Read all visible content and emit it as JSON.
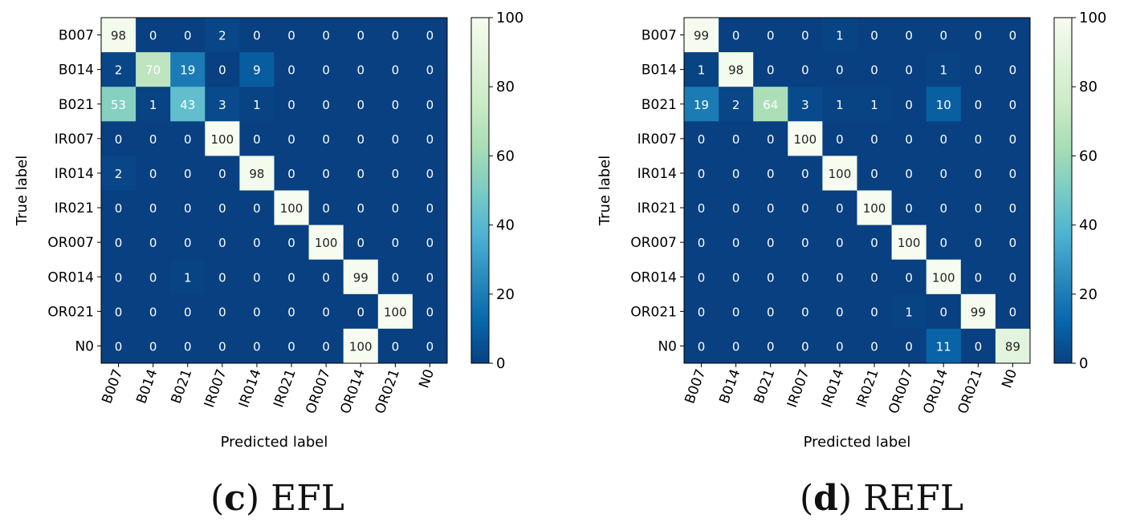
{
  "chart_data": [
    {
      "type": "heatmap",
      "id": "c",
      "caption_letter": "c",
      "caption_text": "EFL",
      "xlabel": "Predicted label",
      "ylabel": "True label",
      "labels": [
        "B007",
        "B014",
        "B021",
        "IR007",
        "IR014",
        "IR021",
        "OR007",
        "OR014",
        "OR021",
        "N0"
      ],
      "matrix": [
        [
          98,
          0,
          0,
          2,
          0,
          0,
          0,
          0,
          0,
          0
        ],
        [
          2,
          70,
          19,
          0,
          9,
          0,
          0,
          0,
          0,
          0
        ],
        [
          53,
          1,
          43,
          3,
          1,
          0,
          0,
          0,
          0,
          0
        ],
        [
          0,
          0,
          0,
          100,
          0,
          0,
          0,
          0,
          0,
          0
        ],
        [
          2,
          0,
          0,
          0,
          98,
          0,
          0,
          0,
          0,
          0
        ],
        [
          0,
          0,
          0,
          0,
          0,
          100,
          0,
          0,
          0,
          0
        ],
        [
          0,
          0,
          0,
          0,
          0,
          0,
          100,
          0,
          0,
          0
        ],
        [
          0,
          0,
          1,
          0,
          0,
          0,
          0,
          99,
          0,
          0
        ],
        [
          0,
          0,
          0,
          0,
          0,
          0,
          0,
          0,
          100,
          0
        ],
        [
          0,
          0,
          0,
          0,
          0,
          0,
          0,
          100,
          0,
          0
        ]
      ],
      "colormap": "GnBu_r",
      "vmin": 0,
      "vmax": 100,
      "colorbar_ticks": [
        0,
        20,
        40,
        60,
        80,
        100
      ]
    },
    {
      "type": "heatmap",
      "id": "d",
      "caption_letter": "d",
      "caption_text": "REFL",
      "xlabel": "Predicted label",
      "ylabel": "True label",
      "labels": [
        "B007",
        "B014",
        "B021",
        "IR007",
        "IR014",
        "IR021",
        "OR007",
        "OR014",
        "OR021",
        "N0"
      ],
      "matrix": [
        [
          99,
          0,
          0,
          0,
          1,
          0,
          0,
          0,
          0,
          0
        ],
        [
          1,
          98,
          0,
          0,
          0,
          0,
          0,
          1,
          0,
          0
        ],
        [
          19,
          2,
          64,
          3,
          1,
          1,
          0,
          10,
          0,
          0
        ],
        [
          0,
          0,
          0,
          100,
          0,
          0,
          0,
          0,
          0,
          0
        ],
        [
          0,
          0,
          0,
          0,
          100,
          0,
          0,
          0,
          0,
          0
        ],
        [
          0,
          0,
          0,
          0,
          0,
          100,
          0,
          0,
          0,
          0
        ],
        [
          0,
          0,
          0,
          0,
          0,
          0,
          100,
          0,
          0,
          0
        ],
        [
          0,
          0,
          0,
          0,
          0,
          0,
          0,
          100,
          0,
          0
        ],
        [
          0,
          0,
          0,
          0,
          0,
          0,
          1,
          0,
          99,
          0
        ],
        [
          0,
          0,
          0,
          0,
          0,
          0,
          0,
          11,
          0,
          89
        ]
      ],
      "colormap": "GnBu_r",
      "vmin": 0,
      "vmax": 100,
      "colorbar_ticks": [
        0,
        20,
        40,
        60,
        80,
        100
      ]
    }
  ]
}
